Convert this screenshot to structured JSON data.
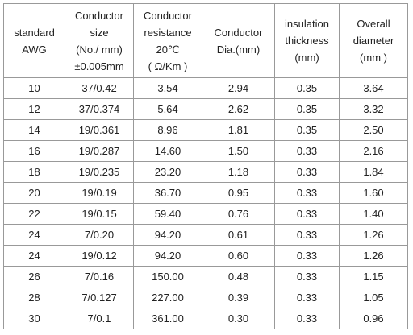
{
  "table": {
    "header": [
      [
        "standard",
        "AWG"
      ],
      [
        "Conductor",
        "size",
        "(No./ mm)",
        "±0.005mm"
      ],
      [
        "Conductor",
        "resistance",
        "20℃",
        "( Ω/Km )"
      ],
      [
        "Conductor",
        "Dia.(mm)"
      ],
      [
        "insulation",
        "thickness",
        "(mm)"
      ],
      [
        "Overall",
        "diameter",
        "(mm )"
      ]
    ],
    "rows": [
      [
        "10",
        "37/0.42",
        "3.54",
        "2.94",
        "0.35",
        "3.64"
      ],
      [
        "12",
        "37/0.374",
        "5.64",
        "2.62",
        "0.35",
        "3.32"
      ],
      [
        "14",
        "19/0.361",
        "8.96",
        "1.81",
        "0.35",
        "2.50"
      ],
      [
        "16",
        "19/0.287",
        "14.60",
        "1.50",
        "0.33",
        "2.16"
      ],
      [
        "18",
        "19/0.235",
        "23.20",
        "1.18",
        "0.33",
        "1.84"
      ],
      [
        "20",
        "19/0.19",
        "36.70",
        "0.95",
        "0.33",
        "1.60"
      ],
      [
        "22",
        "19/0.15",
        "59.40",
        "0.76",
        "0.33",
        "1.40"
      ],
      [
        "24",
        "7/0.20",
        "94.20",
        "0.61",
        "0.33",
        "1.26"
      ],
      [
        "24",
        "19/0.12",
        "94.20",
        "0.60",
        "0.33",
        "1.26"
      ],
      [
        "26",
        "7/0.16",
        "150.00",
        "0.48",
        "0.33",
        "1.15"
      ],
      [
        "28",
        "7/0.127",
        "227.00",
        "0.39",
        "0.33",
        "1.05"
      ],
      [
        "30",
        "7/0.1",
        "361.00",
        "0.30",
        "0.33",
        "0.96"
      ]
    ]
  }
}
